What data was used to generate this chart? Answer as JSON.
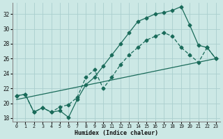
{
  "xlabel": "Humidex (Indice chaleur)",
  "bg_color": "#cce8e5",
  "grid_color": "#aacece",
  "line_color": "#1a6b5a",
  "xlim": [
    -0.5,
    23.5
  ],
  "ylim": [
    17.5,
    33.5
  ],
  "xticks": [
    0,
    1,
    2,
    3,
    4,
    5,
    6,
    7,
    8,
    9,
    10,
    11,
    12,
    13,
    14,
    15,
    16,
    17,
    18,
    19,
    20,
    21,
    22,
    23
  ],
  "yticks": [
    18,
    20,
    22,
    24,
    26,
    28,
    30,
    32
  ],
  "curve1_x": [
    0,
    1,
    2,
    3,
    4,
    5,
    6,
    7,
    8,
    9,
    10,
    11,
    12,
    13,
    14,
    15,
    16,
    17,
    18,
    19,
    20,
    21,
    22,
    23
  ],
  "curve1_y": [
    21.0,
    21.2,
    18.8,
    19.4,
    18.8,
    19.0,
    18.1,
    20.5,
    22.5,
    23.5,
    25.0,
    26.5,
    28.0,
    29.5,
    31.0,
    31.5,
    32.0,
    32.2,
    32.5,
    33.0,
    30.5,
    27.8,
    27.5,
    26.0
  ],
  "curve2_x": [
    0,
    1,
    2,
    3,
    4,
    5,
    6,
    7,
    8,
    9,
    10,
    11,
    12,
    13,
    14,
    15,
    16,
    17,
    18,
    19,
    20,
    21,
    22,
    23
  ],
  "curve2_y": [
    21.0,
    21.2,
    18.8,
    19.4,
    18.8,
    19.5,
    19.8,
    20.8,
    23.5,
    24.5,
    22.0,
    23.5,
    25.2,
    26.5,
    27.5,
    28.5,
    29.0,
    29.5,
    29.0,
    27.5,
    26.5,
    25.5,
    27.5,
    26.0
  ],
  "line3_x": [
    0,
    23
  ],
  "line3_y": [
    20.5,
    26.0
  ]
}
